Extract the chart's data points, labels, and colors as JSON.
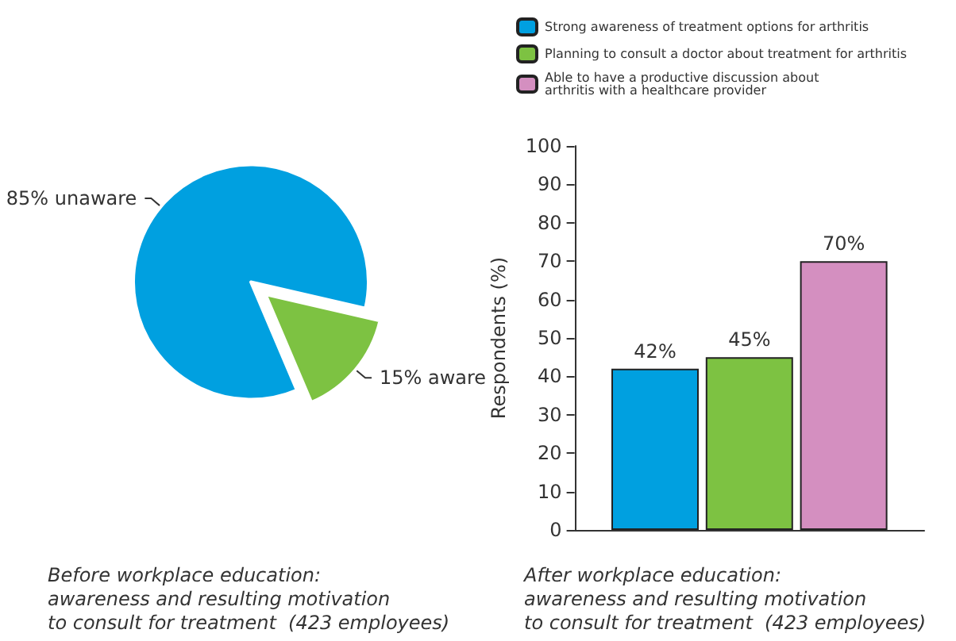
{
  "chart_data": [
    {
      "type": "pie",
      "categories": [
        "85% unaware",
        "15% aware"
      ],
      "values": [
        85,
        15
      ],
      "colors": [
        "#00a0e0",
        "#7dc242"
      ],
      "annotations": [
        "Before workplace education:\nawareness and resulting motivation\nto consult for treatment  (423 employees)"
      ]
    },
    {
      "type": "bar",
      "categories": [
        null
      ],
      "ylabel": "Respondents (%)",
      "ylim": [
        0,
        100
      ],
      "yticks": [
        0,
        10,
        20,
        30,
        40,
        50,
        60,
        70,
        80,
        90,
        100
      ],
      "grid": false,
      "legend": "top",
      "series": [
        {
          "name": "Strong awareness of treatment options for arthritis",
          "color": "#00a0e0",
          "values": [
            42
          ],
          "value_labels": [
            "42%"
          ]
        },
        {
          "name": "Planning to consult a doctor about treatment for arthritis",
          "color": "#7dc242",
          "values": [
            45
          ],
          "value_labels": [
            "45%"
          ]
        },
        {
          "name": "Able to have a productive discussion about\narthritis with a healthcare provider",
          "color": "#d48fc0",
          "values": [
            70
          ],
          "value_labels": [
            "70%"
          ]
        }
      ],
      "annotations": [
        "After workplace education:\nawareness and resulting motivation\nto consult for treatment  (423 employees)"
      ]
    }
  ]
}
